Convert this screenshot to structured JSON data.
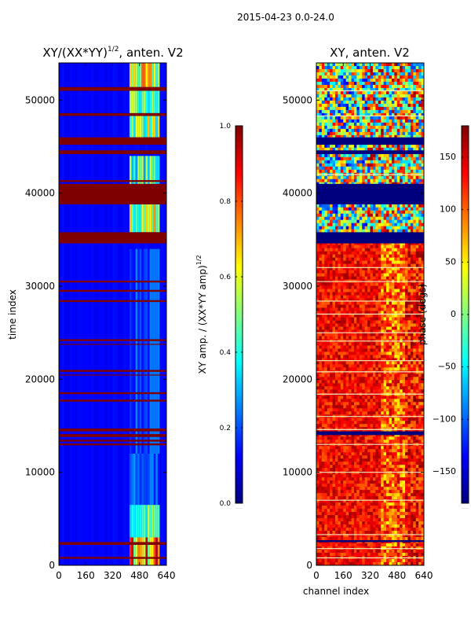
{
  "figure": {
    "suptitle": "2015-04-23 0.0-24.0"
  },
  "chart_data": [
    {
      "type": "heatmap",
      "title": "XY/(XX*YY)",
      "title_exponent": "1/2",
      "title_suffix": ", anten. V2",
      "xlabel": "",
      "ylabel": "time index",
      "xlim": [
        0,
        640
      ],
      "ylim": [
        0,
        54000
      ],
      "xticks": [
        0,
        160,
        320,
        480,
        640
      ],
      "yticks": [
        0,
        10000,
        20000,
        30000,
        40000,
        50000
      ],
      "colorbar": {
        "label": "XY amp. / (XX*YY amp)",
        "label_exponent": "1/2",
        "range": [
          0.0,
          1.0
        ],
        "ticks": [
          "0.0",
          "0.2",
          "0.4",
          "0.6",
          "0.8",
          "1.0"
        ],
        "colormap": "jet"
      },
      "background_value": 0.12,
      "saturated_bands": [
        [
          38800,
          41000
        ],
        [
          34600,
          35800
        ],
        [
          51000,
          51400
        ],
        [
          48300,
          48600
        ],
        [
          45200,
          46000
        ],
        [
          44200,
          44600
        ],
        [
          41200,
          41400
        ],
        [
          30400,
          30600
        ],
        [
          29400,
          29600
        ],
        [
          28300,
          28500
        ],
        [
          24100,
          24300
        ],
        [
          23700,
          23800
        ],
        [
          20800,
          21000
        ],
        [
          20400,
          20500
        ],
        [
          18400,
          18600
        ],
        [
          17600,
          17800
        ],
        [
          14400,
          14700
        ],
        [
          13800,
          14100
        ],
        [
          13300,
          13500
        ],
        [
          12900,
          13100
        ],
        [
          2200,
          2500
        ],
        [
          700,
          900
        ]
      ],
      "bright_region": {
        "x": [
          420,
          600
        ],
        "value": 0.55
      }
    },
    {
      "type": "heatmap",
      "title": "XY, anten. V2",
      "xlabel": "channel index",
      "ylabel": "",
      "xlim": [
        0,
        640
      ],
      "ylim": [
        0,
        54000
      ],
      "xticks": [
        0,
        160,
        320,
        480,
        640
      ],
      "yticks": [
        0,
        10000,
        20000,
        30000,
        40000,
        50000
      ],
      "colorbar": {
        "label": "phase (degs)",
        "range": [
          -180,
          180
        ],
        "ticks": [
          "150",
          "100",
          "50",
          "0",
          "−50",
          "−100",
          "−150"
        ],
        "colormap": "jet"
      },
      "background_phase": 120,
      "dark_bands": [
        [
          38800,
          41000
        ],
        [
          34600,
          35800
        ],
        [
          45200,
          46000
        ],
        [
          44200,
          44600
        ],
        [
          14000,
          14400
        ],
        [
          2500,
          2700
        ]
      ],
      "light_lines": [
        51000,
        48300,
        42000,
        32000,
        30500,
        28400,
        27000,
        25000,
        24100,
        22000,
        20800,
        18400,
        16000,
        14600,
        13000,
        10000,
        7000,
        3300,
        1800,
        800
      ]
    }
  ]
}
